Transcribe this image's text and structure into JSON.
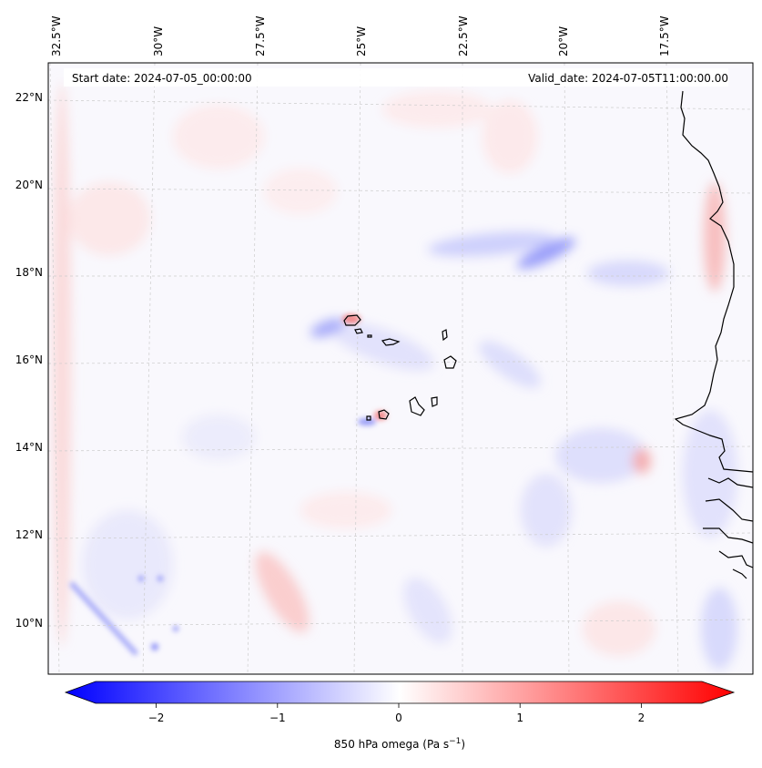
{
  "header": {
    "start_date": "Start date: 2024-07-05_00:00:00",
    "valid_date": "Valid_date: 2024-07-05T11:00:00.00"
  },
  "axes": {
    "lon_labels": [
      "32.5°W",
      "30°W",
      "27.5°W",
      "25°W",
      "22.5°W",
      "20°W",
      "17.5°W"
    ],
    "lat_labels": [
      "22°N",
      "20°N",
      "18°N",
      "16°N",
      "14°N",
      "12°N",
      "10°N"
    ]
  },
  "colorbar": {
    "ticks": [
      "−2",
      "−1",
      "0",
      "1",
      "2"
    ],
    "tick_values": [
      -2,
      -1,
      0,
      1,
      2
    ],
    "range": [
      -2.5,
      2.5
    ],
    "label": "850 hPa omega (Pa s",
    "label_sup": "−1",
    "label_close": ")",
    "colors": {
      "min": "#0000ff",
      "mid": "#ffffff",
      "max": "#ff0000"
    }
  },
  "map": {
    "coastline_color": "#000000",
    "grid_color": "#cccccc"
  }
}
